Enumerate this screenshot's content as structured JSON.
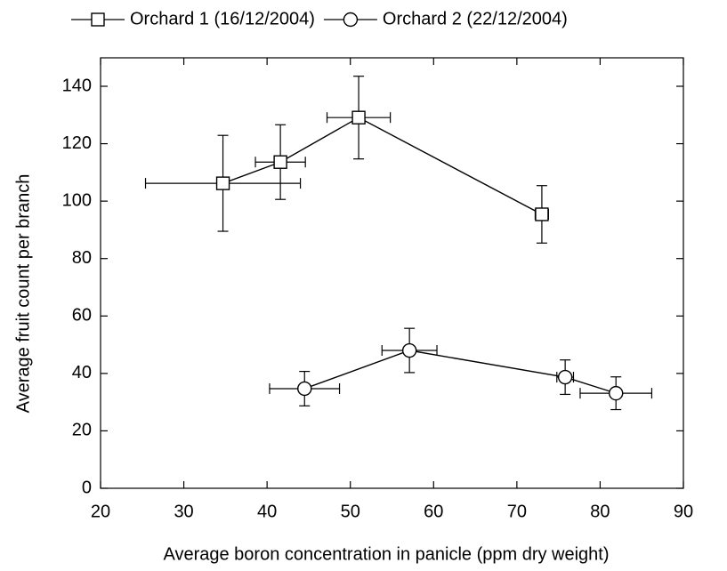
{
  "chart_data": {
    "type": "scatter",
    "xlabel": "Average boron concentration in panicle (ppm dry weight)",
    "ylabel": "Average fruit count per branch",
    "xlim": [
      20,
      90
    ],
    "xticks": [
      20,
      30,
      40,
      50,
      60,
      70,
      80,
      90
    ],
    "ylim": [
      0,
      140
    ],
    "yticks": [
      0,
      20,
      40,
      60,
      80,
      100,
      120,
      140
    ],
    "legend": "top",
    "series": [
      {
        "name": "Orchard 1 (16/12/2004)",
        "color": "#000000",
        "marker": "square",
        "x": [
          34.7,
          41.6,
          51.0,
          73.0
        ],
        "values": [
          106.2,
          113.6,
          129.1,
          95.4
        ],
        "xerr": [
          9.3,
          3.0,
          3.8,
          0.8
        ],
        "yerr": [
          16.7,
          13.0,
          14.4,
          10.0
        ]
      },
      {
        "name": "Orchard 2 (22/12/2004)",
        "color": "#000000",
        "marker": "circle",
        "x": [
          44.5,
          57.1,
          75.8,
          81.9
        ],
        "values": [
          34.7,
          48.0,
          38.7,
          33.1
        ],
        "xerr": [
          4.2,
          3.3,
          1.0,
          4.3
        ],
        "yerr": [
          6.0,
          7.7,
          6.0,
          5.7
        ]
      }
    ]
  }
}
